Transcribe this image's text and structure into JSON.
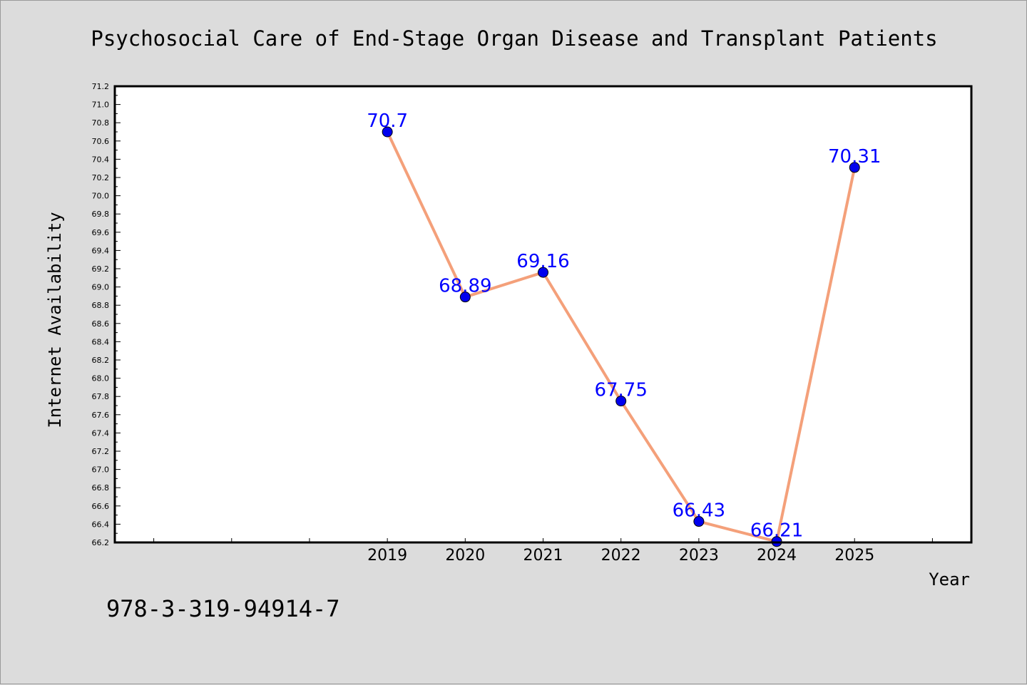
{
  "chart_data": {
    "type": "line",
    "title": "Psychosocial Care of End-Stage Organ Disease and Transplant Patients",
    "xlabel": "Year",
    "ylabel": "Internet Availability",
    "x_tick_labels": [
      "2019",
      "2020",
      "2021",
      "2022",
      "2023",
      "2024",
      "2025"
    ],
    "x": [
      2019,
      2020,
      2021,
      2022,
      2023,
      2024,
      2025
    ],
    "x_range": [
      2015.5,
      2026.5
    ],
    "series": [
      {
        "values": [
          70.7,
          68.89,
          69.16,
          67.75,
          66.43,
          66.21,
          70.31
        ],
        "data_labels": [
          "70.7",
          "68.89",
          "69.16",
          "67.75",
          "66.43",
          "66.21",
          "70.31"
        ]
      }
    ],
    "ylim": [
      66.2,
      71.2
    ],
    "y_major_step": 0.2,
    "y_minor_step": 0.1,
    "grid": false,
    "line_color": "#f4a07a",
    "marker_color": "#0000ee",
    "label_color": "#0000ff",
    "background": "#dcdcdc",
    "plot_background": "#ffffff"
  },
  "footer": {
    "isbn": "978-3-319-94914-7"
  }
}
